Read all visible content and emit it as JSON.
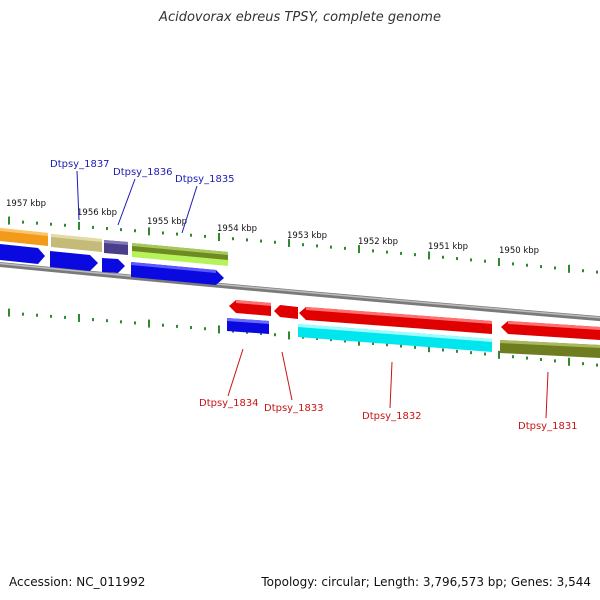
{
  "title": "Acidovorax ebreus TPSY, complete genome",
  "accession": "Accession: NC_011992",
  "topology": "Topology: circular; Length: 3,796,573 bp; Genes: 3,544",
  "scale_labels": [
    "1957 kbp",
    "1956 kbp",
    "1955 kbp",
    "1954 kbp",
    "1953 kbp",
    "1952 kbp",
    "1951 kbp",
    "1950 kbp"
  ],
  "genes_top": [
    "Dtpsy_1837",
    "Dtpsy_1836",
    "Dtpsy_1835"
  ],
  "genes_bottom": [
    "Dtpsy_1834",
    "Dtpsy_1833",
    "Dtpsy_1832",
    "Dtpsy_1831"
  ],
  "colors": {
    "top_label": "#1c1cb4",
    "bottom_label": "#c81414",
    "tick": "#2f8a2f",
    "backbone": "#8a8a8a"
  }
}
